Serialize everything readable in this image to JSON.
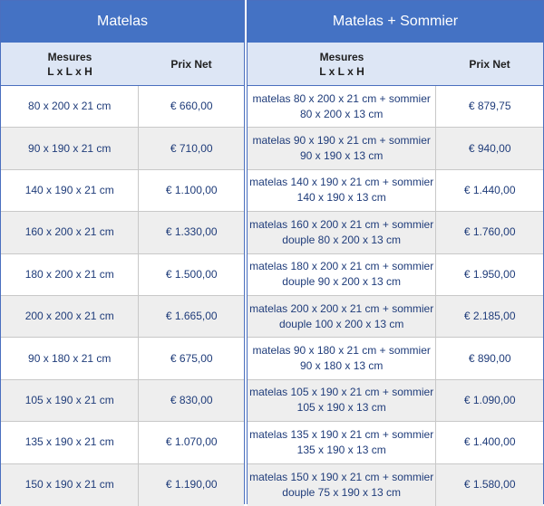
{
  "left": {
    "title": "Matelas",
    "header": {
      "size_line1": "Mesures",
      "size_line2": "L x L x H",
      "price": "Prix Net"
    },
    "rows": [
      {
        "size": "80 x 200 x 21 cm",
        "price": "€ 660,00"
      },
      {
        "size": "90 x 190 x 21 cm",
        "price": "€ 710,00"
      },
      {
        "size": "140 x 190 x 21 cm",
        "price": "€ 1.100,00"
      },
      {
        "size": "160 x 200 x 21 cm",
        "price": "€ 1.330,00"
      },
      {
        "size": "180 x 200 x 21 cm",
        "price": "€ 1.500,00"
      },
      {
        "size": "200 x 200 x 21 cm",
        "price": "€ 1.665,00"
      },
      {
        "size": "90 x 180 x 21 cm",
        "price": "€ 675,00"
      },
      {
        "size": "105 x 190 x 21 cm",
        "price": "€ 830,00"
      },
      {
        "size": "135 x 190 x 21 cm",
        "price": "€ 1.070,00"
      },
      {
        "size": "150 x 190 x 21 cm",
        "price": "€ 1.190,00"
      }
    ]
  },
  "right": {
    "title": "Matelas + Sommier",
    "header": {
      "size_line1": "Mesures",
      "size_line2": "L x L x H",
      "price": "Prix Net"
    },
    "rows": [
      {
        "line1": "matelas 80 x 200 x 21 cm + sommier",
        "line2": "80 x 200 x 13 cm",
        "price": "€ 879,75"
      },
      {
        "line1": "matelas 90 x 190 x 21 cm + sommier",
        "line2": "90 x 190 x 13 cm",
        "price": "€ 940,00"
      },
      {
        "line1": "matelas 140 x 190 x 21 cm + sommier",
        "line2": "140 x 190 x 13 cm",
        "price": "€ 1.440,00"
      },
      {
        "line1": "matelas 160 x 200 x 21 cm + sommier",
        "line2": "douple 80 x 200 x 13 cm",
        "price": "€ 1.760,00"
      },
      {
        "line1": "matelas 180 x 200 x 21 cm + sommier",
        "line2": "douple 90 x 200 x 13 cm",
        "price": "€ 1.950,00"
      },
      {
        "line1": "matelas 200 x 200 x 21 cm + sommier",
        "line2": "douple 100 x 200 x 13 cm",
        "price": "€ 2.185,00"
      },
      {
        "line1": "matelas 90 x 180 x 21 cm + sommier",
        "line2": "90 x 180 x 13 cm",
        "price": "€ 890,00"
      },
      {
        "line1": "matelas 105 x 190 x 21 cm + sommier",
        "line2": "105 x 190 x 13 cm",
        "price": "€ 1.090,00"
      },
      {
        "line1": "matelas 135 x 190 x 21 cm + sommier",
        "line2": "135 x 190 x 13 cm",
        "price": "€ 1.400,00"
      },
      {
        "line1": "matelas 150 x 190 x 21 cm + sommier",
        "line2": "douple 75 x 190 x 13 cm",
        "price": "€ 1.580,00"
      }
    ]
  },
  "colors": {
    "header_blue": "#4472c4",
    "subheader": "#dde6f5",
    "alt_row": "#eeeeee",
    "text_blue": "#1f3c7a"
  }
}
